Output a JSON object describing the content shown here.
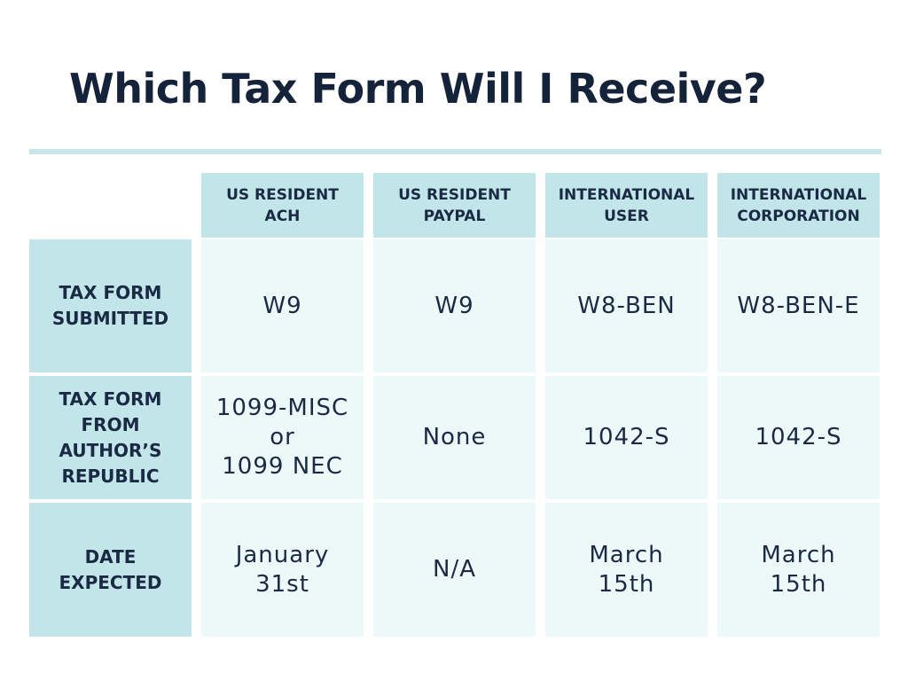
{
  "title": "Which Tax Form Will I Receive?",
  "columns": [
    "US RESIDENT\nACH",
    "US RESIDENT\nPAYPAL",
    "INTERNATIONAL\nUSER",
    "INTERNATIONAL\nCORPORATION"
  ],
  "rows": [
    {
      "label": "TAX FORM\nSUBMITTED",
      "cells": [
        "W9",
        "W9",
        "W8-BEN",
        "W8-BEN-E"
      ]
    },
    {
      "label": "TAX FORM\nFROM\nAUTHOR’S\nREPUBLIC",
      "cells": [
        "1099-MISC\nor\n1099 NEC",
        "None",
        "1042-S",
        "1042-S"
      ]
    },
    {
      "label": "DATE\nEXPECTED",
      "cells": [
        "January\n31st",
        "N/A",
        "March\n15th",
        "March\n15th"
      ]
    }
  ],
  "colors": {
    "title": "#14233a",
    "header_fill": "#c2e5e9",
    "cell_fill": "#edf8f9",
    "rule": "#c8e6ea",
    "text": "#1a2a44"
  }
}
